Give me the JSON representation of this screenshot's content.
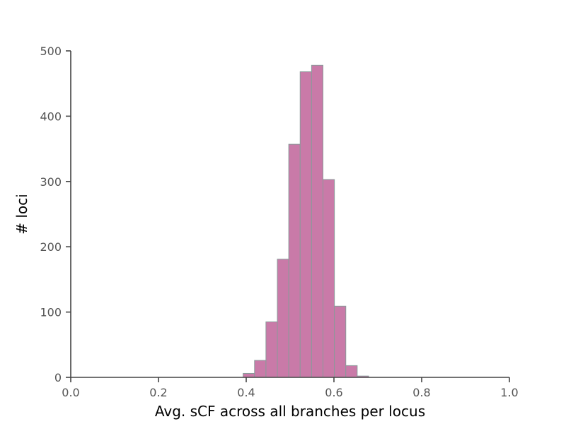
{
  "chart_data": {
    "type": "bar",
    "subtype": "histogram",
    "title": "",
    "xlabel": "Avg. sCF across all branches per locus",
    "ylabel": "# loci",
    "xlim": [
      0.0,
      1.0
    ],
    "ylim": [
      0,
      500
    ],
    "xticks": [
      "0.0",
      "0.2",
      "0.4",
      "0.6",
      "0.8",
      "1.0"
    ],
    "yticks": [
      "0",
      "100",
      "200",
      "300",
      "400",
      "500"
    ],
    "grid": false,
    "bin_width": 0.026,
    "bins": [
      {
        "x0": 0.393,
        "x1": 0.419,
        "value": 6
      },
      {
        "x0": 0.419,
        "x1": 0.445,
        "value": 26
      },
      {
        "x0": 0.445,
        "x1": 0.471,
        "value": 85
      },
      {
        "x0": 0.471,
        "x1": 0.497,
        "value": 181
      },
      {
        "x0": 0.497,
        "x1": 0.523,
        "value": 357
      },
      {
        "x0": 0.523,
        "x1": 0.549,
        "value": 468
      },
      {
        "x0": 0.549,
        "x1": 0.575,
        "value": 478
      },
      {
        "x0": 0.575,
        "x1": 0.601,
        "value": 303
      },
      {
        "x0": 0.601,
        "x1": 0.627,
        "value": 109
      },
      {
        "x0": 0.627,
        "x1": 0.653,
        "value": 18
      },
      {
        "x0": 0.653,
        "x1": 0.679,
        "value": 2
      }
    ],
    "colors": {
      "bar_fill": "#c97aa8",
      "bar_edge": "#8a9a9a",
      "axis": "#444444",
      "tick_text": "#555555",
      "label_text": "#000000"
    }
  }
}
